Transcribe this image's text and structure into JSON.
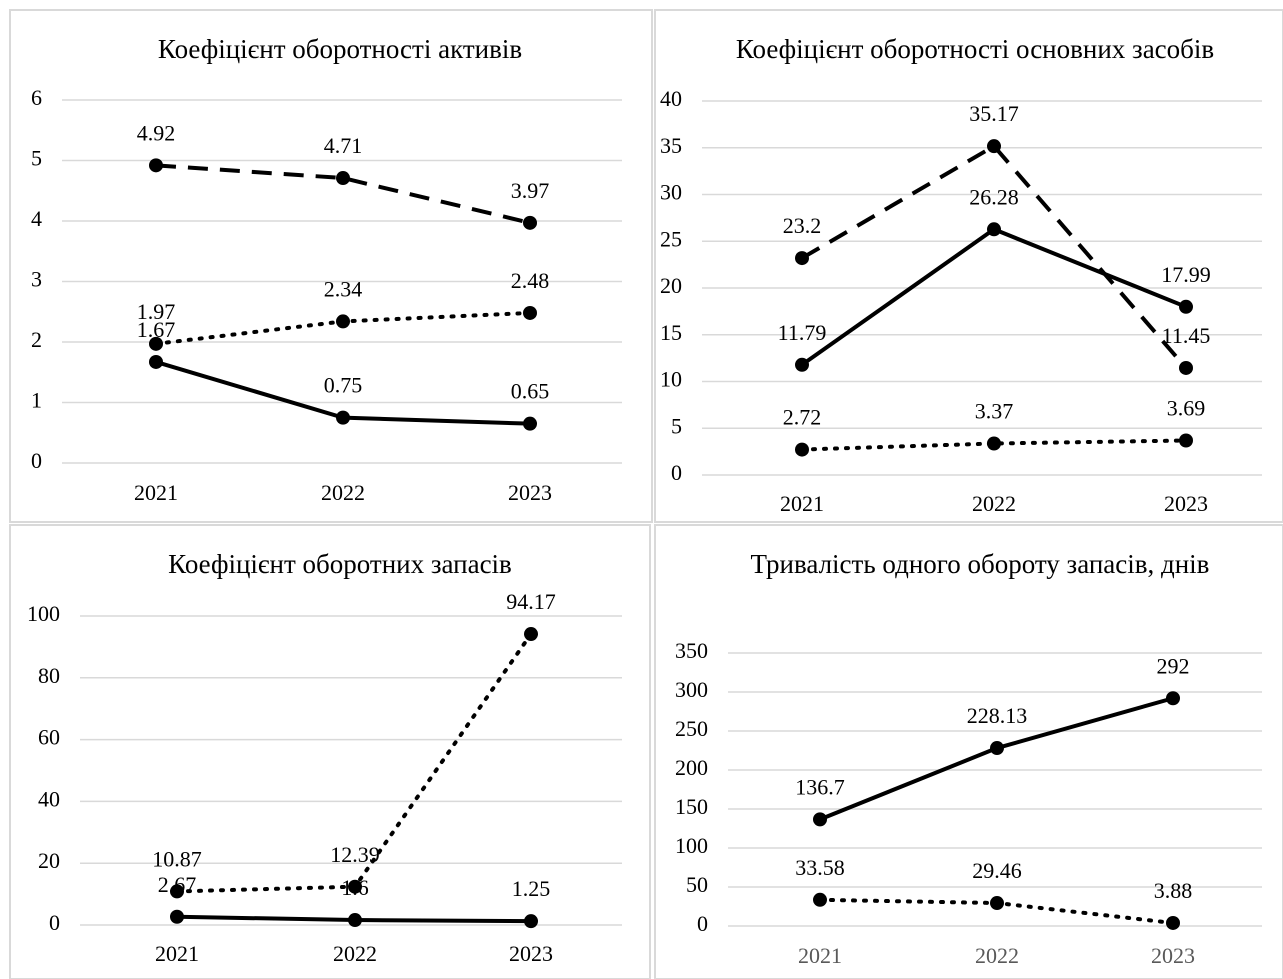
{
  "chart_data": [
    {
      "type": "line",
      "title": "Коефіцієнт оборотності активів",
      "categories": [
        "2021",
        "2022",
        "2023"
      ],
      "ylim": [
        0,
        6
      ],
      "yticks": [
        0,
        1,
        2,
        3,
        4,
        5,
        6
      ],
      "grid": true,
      "series": [
        {
          "color": "#000000",
          "dash": "dashed",
          "values": [
            4.92,
            4.71,
            3.97
          ]
        },
        {
          "color": "#000000",
          "dash": "dotted",
          "values": [
            1.97,
            2.34,
            2.48
          ]
        },
        {
          "color": "#000000",
          "dash": "solid",
          "values": [
            1.67,
            0.75,
            0.65
          ]
        }
      ]
    },
    {
      "type": "line",
      "title": "Коефіцієнт оборотності основних засобів",
      "categories": [
        "2021",
        "2022",
        "2023"
      ],
      "ylim": [
        0,
        40
      ],
      "yticks": [
        0,
        5,
        10,
        15,
        20,
        25,
        30,
        35,
        40
      ],
      "grid": true,
      "series": [
        {
          "color": "#000000",
          "dash": "dashed",
          "values": [
            23.2,
            35.17,
            11.45
          ]
        },
        {
          "color": "#000000",
          "dash": "solid",
          "values": [
            11.79,
            26.28,
            17.99
          ]
        },
        {
          "color": "#000000",
          "dash": "dotted",
          "values": [
            2.72,
            3.37,
            3.69
          ]
        }
      ]
    },
    {
      "type": "line",
      "title": "Коефіцієнт оборотних запасів",
      "categories": [
        "2021",
        "2022",
        "2023"
      ],
      "ylim": [
        0,
        100
      ],
      "yticks": [
        0,
        20,
        40,
        60,
        80,
        100
      ],
      "grid": true,
      "series": [
        {
          "color": "#000000",
          "dash": "dotted",
          "values": [
            10.87,
            12.39,
            94.17
          ]
        },
        {
          "color": "#000000",
          "dash": "solid",
          "values": [
            2.67,
            1.6,
            1.25
          ]
        }
      ]
    },
    {
      "type": "line",
      "title": "Тривалість одного обороту запасів, днів",
      "categories": [
        "2021",
        "2022",
        "2023"
      ],
      "ylim": [
        0,
        350
      ],
      "yticks": [
        0,
        50,
        100,
        150,
        200,
        250,
        300,
        350
      ],
      "grid": true,
      "series": [
        {
          "color": "#000000",
          "dash": "solid",
          "values": [
            136.7,
            228.13,
            292
          ]
        },
        {
          "color": "#000000",
          "dash": "dotted",
          "values": [
            33.58,
            29.46,
            3.88
          ]
        }
      ]
    }
  ]
}
